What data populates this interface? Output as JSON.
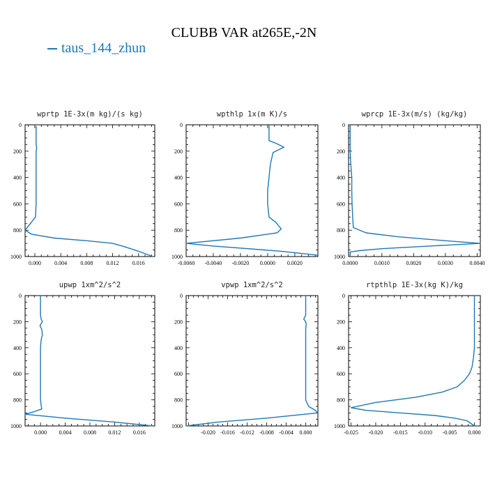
{
  "figure": {
    "title": "CLUBB VAR at265E,-2N",
    "legend_label": "taus_144_zhun",
    "line_color": "#1f77b4"
  },
  "chart_data": [
    {
      "type": "line",
      "title": "wprtp  1E-3x(m kg)/(s kg)",
      "xlim": [
        -0.0015,
        0.0185
      ],
      "ylim": [
        1000,
        0
      ],
      "xticks": [
        "0.000",
        "0.004",
        "0.008",
        "0.012",
        "0.016"
      ],
      "xtick_values": [
        0,
        0.004,
        0.008,
        0.012,
        0.016
      ],
      "yticks": [
        "0",
        "200",
        "400",
        "600",
        "800",
        "1000"
      ],
      "series": [
        {
          "x": [
            0.0002,
            0.0002,
            0.0003,
            0.0002,
            0.0002,
            0.0002,
            0.0002,
            0.0002,
            0.0001,
            -0.0015,
            -0.0005,
            0.003,
            0.008,
            0.012,
            0.0135,
            0.016,
            0.0182
          ],
          "y": [
            10,
            150,
            180,
            200,
            300,
            400,
            500,
            600,
            700,
            800,
            830,
            860,
            880,
            900,
            920,
            960,
            1000
          ]
        }
      ]
    },
    {
      "type": "line",
      "title": "wpthlp  1x(m K)/s",
      "xlim": [
        -0.006,
        0.0037
      ],
      "ylim": [
        1000,
        0
      ],
      "xticks": [
        "-0.0060",
        "-0.0040",
        "-0.0020",
        "0.0000",
        "0.0020"
      ],
      "xtick_values": [
        -0.006,
        -0.004,
        -0.002,
        0,
        0.002
      ],
      "yticks": [
        "0",
        "200",
        "400",
        "600",
        "800",
        "1000"
      ],
      "series": [
        {
          "x": [
            0.0001,
            0.0001,
            0.0006,
            0.0012,
            0.0004,
            0.0002,
            0.0001,
            0.0,
            0.0,
            0.0001,
            0.0006,
            0.001,
            0.0007,
            -0.002,
            -0.006,
            -0.004,
            0.001,
            0.0037
          ],
          "y": [
            0,
            120,
            140,
            170,
            210,
            300,
            400,
            500,
            600,
            700,
            740,
            790,
            820,
            860,
            900,
            920,
            960,
            990
          ]
        }
      ]
    },
    {
      "type": "line",
      "title": "wprcp  1E-3x(m/s) (kg/kg)",
      "xlim": [
        -5e-05,
        0.0041
      ],
      "ylim": [
        1000,
        0
      ],
      "xticks": [
        "0.0000",
        "0.0010",
        "0.0020",
        "0.0030",
        "0.0040"
      ],
      "xtick_values": [
        0,
        0.001,
        0.002,
        0.003,
        0.004
      ],
      "yticks": [
        "0",
        "200",
        "400",
        "600",
        "800",
        "1000"
      ],
      "series": [
        {
          "x": [
            0.0,
            0.0,
            2e-05,
            5e-05,
            5e-05,
            6e-05,
            8e-05,
            0.0001,
            0.0005,
            0.0015,
            0.003,
            0.0041,
            0.0025,
            0.001,
            0.0003,
            0.0,
            0.0
          ],
          "y": [
            0,
            200,
            300,
            400,
            500,
            600,
            700,
            780,
            820,
            850,
            880,
            900,
            920,
            940,
            955,
            965,
            1000
          ]
        }
      ]
    },
    {
      "type": "line",
      "title": "upwp  1xm^2/s^2",
      "xlim": [
        -0.0025,
        0.0185
      ],
      "ylim": [
        1000,
        0
      ],
      "xticks": [
        "0.000",
        "0.004",
        "0.008",
        "0.012",
        "0.016"
      ],
      "xtick_values": [
        0,
        0.004,
        0.008,
        0.012,
        0.016
      ],
      "yticks": [
        "0",
        "200",
        "400",
        "600",
        "800",
        "1000"
      ],
      "series": [
        {
          "x": [
            0.0,
            0.0,
            0.0001,
            0.0003,
            -0.0001,
            0.0002,
            0.0003,
            0.0001,
            0.0,
            0.0,
            0.0,
            0.0001,
            0.0002,
            -0.001,
            -0.0025,
            0.004,
            0.012,
            0.0182
          ],
          "y": [
            0,
            150,
            180,
            200,
            230,
            260,
            300,
            340,
            400,
            600,
            800,
            840,
            870,
            890,
            910,
            940,
            970,
            1000
          ]
        }
      ]
    },
    {
      "type": "line",
      "title": "vpwp  1xm^2/s^2",
      "xlim": [
        -0.0245,
        0.0025
      ],
      "ylim": [
        1000,
        0
      ],
      "xticks": [
        "-0.020",
        "-0.016",
        "-0.012",
        "-0.008",
        "-0.004",
        "0.000"
      ],
      "xtick_values": [
        -0.02,
        -0.016,
        -0.012,
        -0.008,
        -0.004,
        0
      ],
      "yticks": [
        "0",
        "200",
        "400",
        "600",
        "800",
        "1000"
      ],
      "series": [
        {
          "x": [
            0.0,
            0.0,
            -0.0004,
            0.0,
            0.0001,
            0.0,
            0.0,
            0.0,
            0.0,
            0.0,
            0.0006,
            0.002,
            0.0024,
            -0.008,
            -0.018,
            -0.0245
          ],
          "y": [
            0,
            150,
            180,
            200,
            220,
            260,
            300,
            400,
            600,
            800,
            850,
            880,
            900,
            940,
            970,
            1000
          ]
        }
      ]
    },
    {
      "type": "line",
      "title": "rtpthlp  1E-3x(kg K)/kg",
      "xlim": [
        -0.0255,
        0.0012
      ],
      "ylim": [
        1000,
        0
      ],
      "xticks": [
        "-0.025",
        "-0.020",
        "-0.015",
        "-0.010",
        "-0.005",
        "0.000"
      ],
      "xtick_values": [
        -0.025,
        -0.02,
        -0.015,
        -0.01,
        -0.005,
        0
      ],
      "yticks": [
        "0",
        "200",
        "400",
        "600",
        "800",
        "1000"
      ],
      "series": [
        {
          "x": [
            0.0,
            0.0,
            -0.0002,
            -0.0005,
            -0.001,
            -0.002,
            -0.0035,
            -0.0065,
            -0.012,
            -0.02,
            -0.025,
            -0.022,
            -0.015,
            -0.008,
            -0.004,
            -0.0015,
            0.0
          ],
          "y": [
            0,
            400,
            480,
            550,
            600,
            650,
            700,
            740,
            780,
            820,
            860,
            880,
            900,
            920,
            940,
            960,
            1000
          ]
        }
      ]
    }
  ]
}
